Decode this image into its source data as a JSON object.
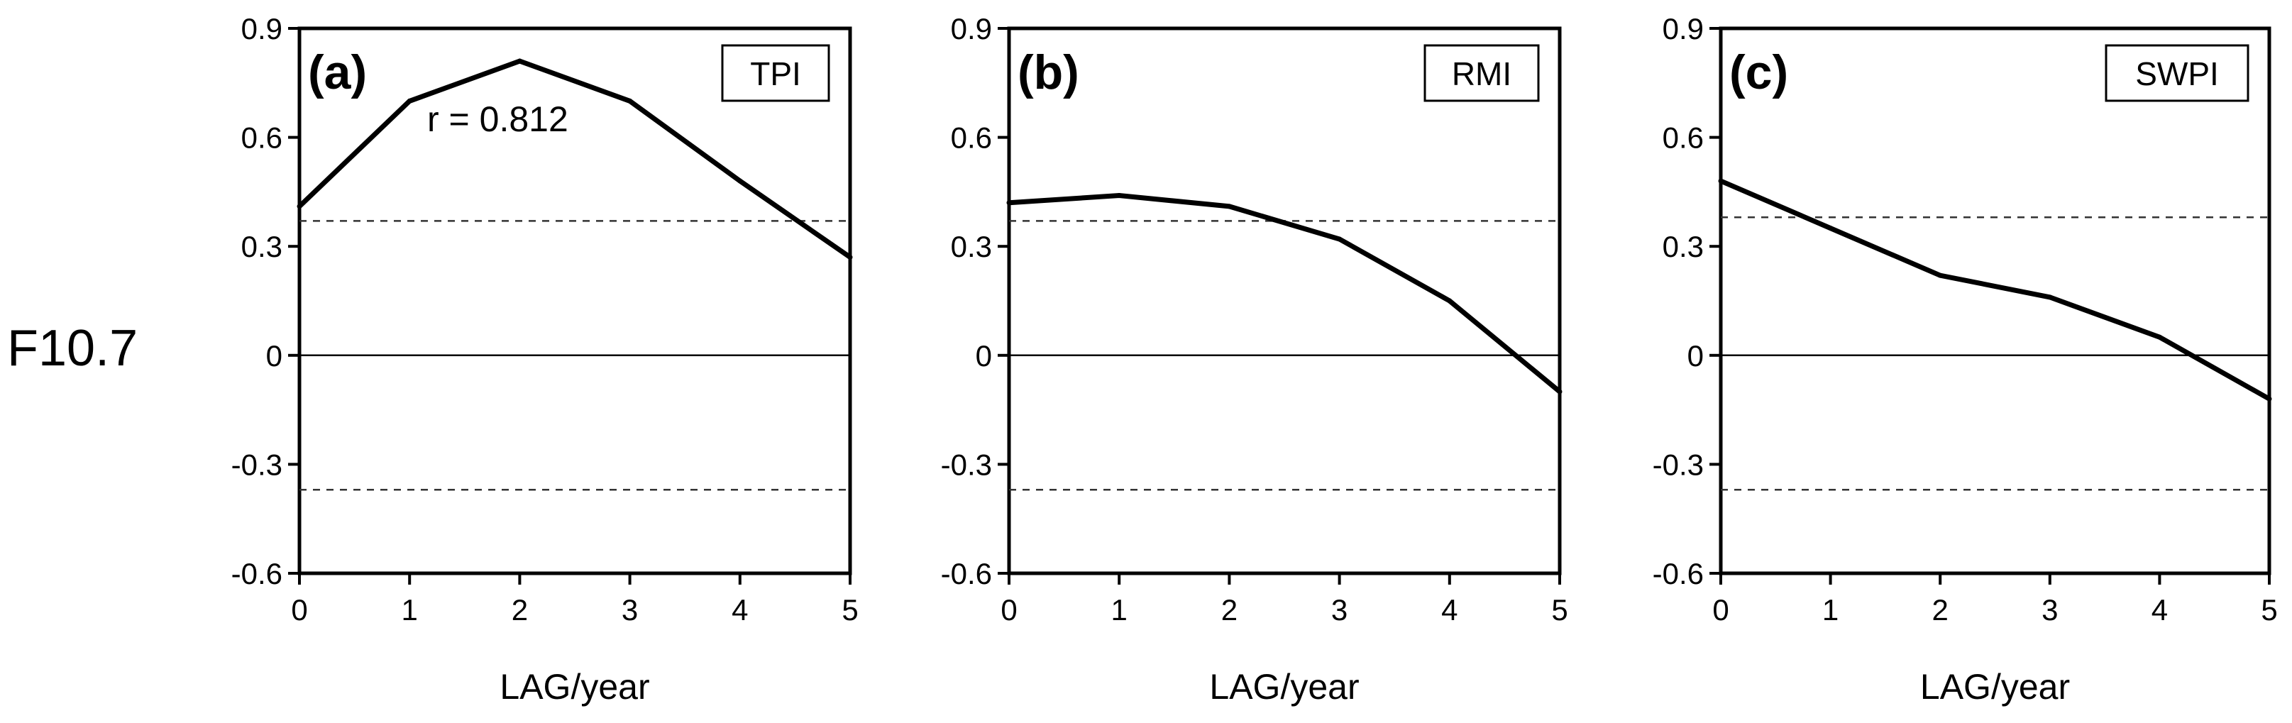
{
  "row_label": "F10.7",
  "chart_data": [
    {
      "type": "line",
      "panel": "(a)",
      "legend": "TPI",
      "xlabel": "LAG/year",
      "ylabel": "",
      "x": [
        0,
        1,
        2,
        3,
        4,
        5
      ],
      "values": [
        0.41,
        0.7,
        0.81,
        0.7,
        0.48,
        0.27
      ],
      "significance": [
        0.37,
        -0.37
      ],
      "annotation": "r = 0.812",
      "xlim": [
        0,
        5
      ],
      "ylim": [
        -0.6,
        0.9
      ],
      "xticks": [
        "0",
        "1",
        "2",
        "3",
        "4",
        "5"
      ],
      "yticks": [
        "-0.6",
        "-0.3",
        "0",
        "0.3",
        "0.6",
        "0.9"
      ]
    },
    {
      "type": "line",
      "panel": "(b)",
      "legend": "RMI",
      "xlabel": "LAG/year",
      "ylabel": "",
      "x": [
        0,
        1,
        2,
        3,
        4,
        5
      ],
      "values": [
        0.42,
        0.44,
        0.41,
        0.32,
        0.15,
        -0.1
      ],
      "significance": [
        0.37,
        -0.37
      ],
      "annotation": "",
      "xlim": [
        0,
        5
      ],
      "ylim": [
        -0.6,
        0.9
      ],
      "xticks": [
        "0",
        "1",
        "2",
        "3",
        "4",
        "5"
      ],
      "yticks": [
        "-0.6",
        "-0.3",
        "0",
        "0.3",
        "0.6",
        "0.9"
      ]
    },
    {
      "type": "line",
      "panel": "(c)",
      "legend": "SWPI",
      "xlabel": "LAG/year",
      "ylabel": "",
      "x": [
        0,
        1,
        2,
        3,
        4,
        5
      ],
      "values": [
        0.48,
        0.35,
        0.22,
        0.16,
        0.05,
        -0.12
      ],
      "significance": [
        0.38,
        -0.37
      ],
      "annotation": "",
      "xlim": [
        0,
        5
      ],
      "ylim": [
        -0.6,
        0.9
      ],
      "xticks": [
        "0",
        "1",
        "2",
        "3",
        "4",
        "5"
      ],
      "yticks": [
        "-0.6",
        "-0.3",
        "0",
        "0.3",
        "0.6",
        "0.9"
      ]
    }
  ]
}
